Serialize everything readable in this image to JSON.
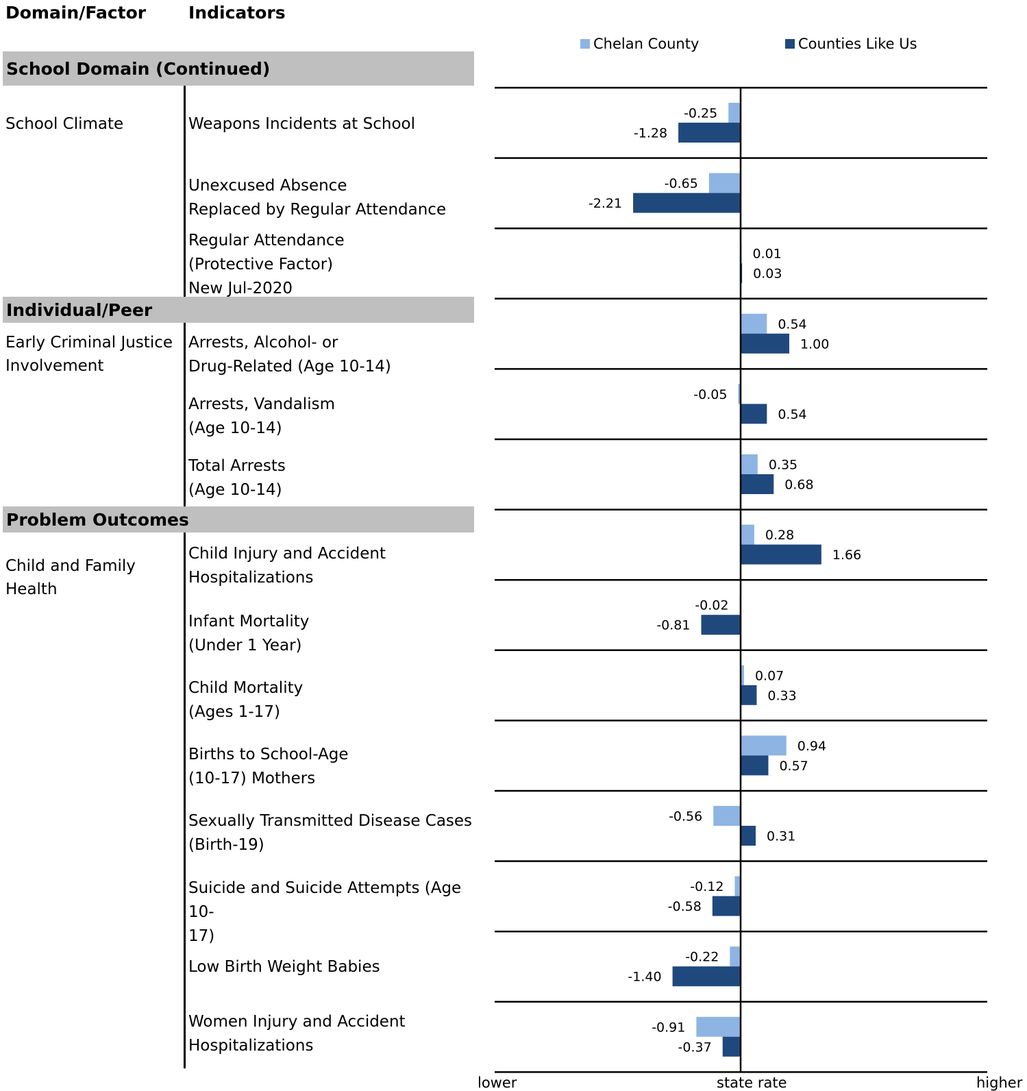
{
  "headers": {
    "domain_factor": "Domain/Factor",
    "indicators": "Indicators"
  },
  "domains": [
    {
      "label": "School Domain (Continued)"
    },
    {
      "label": "Individual/Peer"
    },
    {
      "label": "Problem Outcomes"
    }
  ],
  "factors": [
    {
      "lines": [
        "School Climate"
      ]
    },
    {
      "lines": [
        "Early Criminal Justice",
        "Involvement"
      ]
    },
    {
      "lines": [
        "Child and Family Health"
      ]
    }
  ],
  "indicators": [
    {
      "lines": [
        "Weapons Incidents at School"
      ]
    },
    {
      "lines": [
        "Unexcused Absence",
        "Replaced by Regular Attendance"
      ]
    },
    {
      "lines": [
        "Regular Attendance",
        "(Protective Factor)",
        "New Jul-2020"
      ]
    },
    {
      "lines": [
        "Arrests, Alcohol- or",
        "Drug-Related (Age 10-14)"
      ]
    },
    {
      "lines": [
        "Arrests, Vandalism",
        "(Age 10-14)"
      ]
    },
    {
      "lines": [
        "Total Arrests",
        "(Age 10-14)"
      ]
    },
    {
      "lines": [
        "Child Injury and Accident",
        "Hospitalizations"
      ]
    },
    {
      "lines": [
        "Infant Mortality",
        "(Under 1 Year)"
      ]
    },
    {
      "lines": [
        "Child Mortality",
        "(Ages 1-17)"
      ]
    },
    {
      "lines": [
        "Births to School-Age",
        "(10-17) Mothers"
      ]
    },
    {
      "lines": [
        "Sexually Transmitted Disease Cases",
        "(Birth-19)"
      ]
    },
    {
      "lines": [
        "Suicide and Suicide Attempts (Age 10-",
        "17)"
      ]
    },
    {
      "lines": [
        "Low Birth Weight Babies"
      ]
    },
    {
      "lines": [
        "Women Injury and Accident",
        "Hospitalizations"
      ]
    }
  ],
  "chart_data": {
    "type": "bar",
    "orientation": "horizontal",
    "categories": [
      "Weapons Incidents at School",
      "Unexcused Absence Replaced by Regular Attendance",
      "Regular Attendance (Protective Factor) New Jul-2020",
      "Arrests, Alcohol- or Drug-Related (Age 10-14)",
      "Arrests, Vandalism (Age 10-14)",
      "Total Arrests (Age 10-14)",
      "Child Injury and Accident Hospitalizations",
      "Infant Mortality (Under 1 Year)",
      "Child Mortality (Ages 1-17)",
      "Births to School-Age (10-17) Mothers",
      "Sexually Transmitted Disease Cases (Birth-19)",
      "Suicide and Suicide Attempts (Age 10-17)",
      "Low Birth Weight Babies",
      "Women Injury and Accident Hospitalizations"
    ],
    "series": [
      {
        "name": "Chelan County",
        "color": "#8eb4e3",
        "values": [
          -0.25,
          -0.65,
          0.01,
          0.54,
          -0.05,
          0.35,
          0.28,
          -0.02,
          0.07,
          0.94,
          -0.56,
          -0.12,
          -0.22,
          -0.91
        ],
        "labels": [
          "-0.25",
          "-0.65",
          "0.01",
          "0.54",
          "-0.05",
          "0.35",
          "0.28",
          "-0.02",
          "0.07",
          "0.94",
          "-0.56",
          "-0.12",
          "-0.22",
          "-0.91"
        ]
      },
      {
        "name": "Counties Like Us",
        "color": "#1f497d",
        "values": [
          -1.28,
          -2.21,
          0.03,
          1.0,
          0.54,
          0.68,
          1.66,
          -0.81,
          0.33,
          0.57,
          0.31,
          -0.58,
          -1.4,
          -0.37
        ],
        "labels": [
          "-1.28",
          "-2.21",
          "0.03",
          "1.00",
          "0.54",
          "0.68",
          "1.66",
          "-0.81",
          "0.33",
          "0.57",
          "0.31",
          "-0.58",
          "-1.40",
          "-0.37"
        ]
      }
    ],
    "xlim": [
      -5,
      5
    ],
    "x_axis_labels": {
      "left": "lower",
      "center": "state rate",
      "right": "higher"
    },
    "legend_position": "top"
  }
}
